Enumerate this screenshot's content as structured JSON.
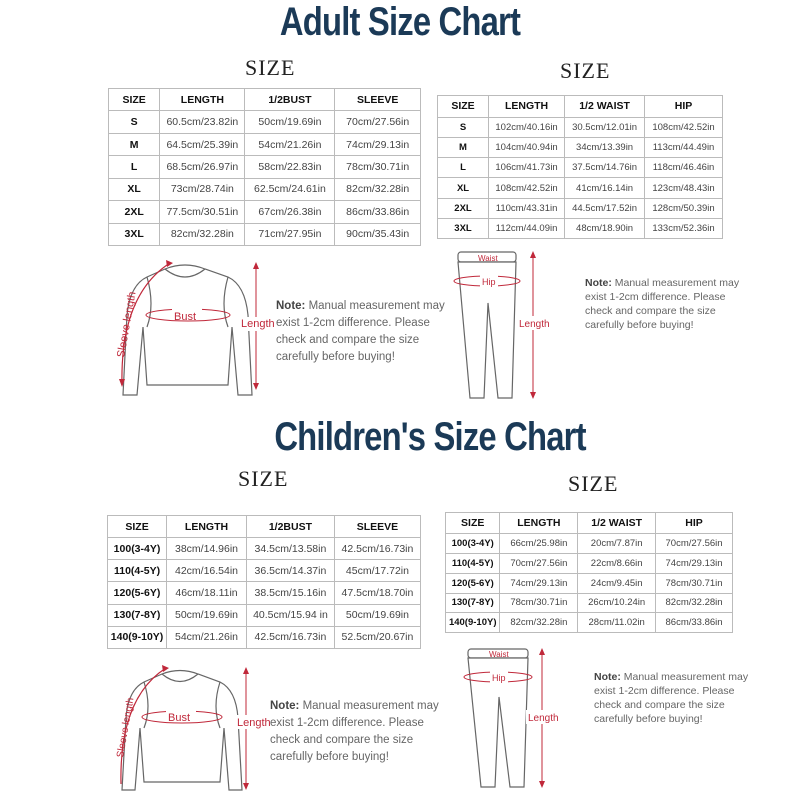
{
  "adult": {
    "title": "Adult Size Chart",
    "top_table": {
      "heading": "SIZE",
      "headers": [
        "SIZE",
        "LENGTH",
        "1/2BUST",
        "SLEEVE"
      ],
      "rows": [
        [
          "S",
          "60.5cm/23.82in",
          "50cm/19.69in",
          "70cm/27.56in"
        ],
        [
          "M",
          "64.5cm/25.39in",
          "54cm/21.26in",
          "74cm/29.13in"
        ],
        [
          "L",
          "68.5cm/26.97in",
          "58cm/22.83in",
          "78cm/30.71in"
        ],
        [
          "XL",
          "73cm/28.74in",
          "62.5cm/24.61in",
          "82cm/32.28in"
        ],
        [
          "2XL",
          "77.5cm/30.51in",
          "67cm/26.38in",
          "86cm/33.86in"
        ],
        [
          "3XL",
          "82cm/32.28in",
          "71cm/27.95in",
          "90cm/35.43in"
        ]
      ]
    },
    "bottom_table": {
      "heading": "SIZE",
      "headers": [
        "SIZE",
        "LENGTH",
        "1/2 WAIST",
        "HIP"
      ],
      "rows": [
        [
          "S",
          "102cm/40.16in",
          "30.5cm/12.01in",
          "108cm/42.52in"
        ],
        [
          "M",
          "104cm/40.94in",
          "34cm/13.39in",
          "113cm/44.49in"
        ],
        [
          "L",
          "106cm/41.73in",
          "37.5cm/14.76in",
          "118cm/46.46in"
        ],
        [
          "XL",
          "108cm/42.52in",
          "41cm/16.14in",
          "123cm/48.43in"
        ],
        [
          "2XL",
          "110cm/43.31in",
          "44.5cm/17.52in",
          "128cm/50.39in"
        ],
        [
          "3XL",
          "112cm/44.09in",
          "48cm/18.90in",
          "133cm/52.36in"
        ]
      ]
    }
  },
  "children": {
    "title": "Children's Size Chart",
    "top_table": {
      "heading": "SIZE",
      "headers": [
        "SIZE",
        "LENGTH",
        "1/2BUST",
        "SLEEVE"
      ],
      "rows": [
        [
          "100(3-4Y)",
          "38cm/14.96in",
          "34.5cm/13.58in",
          "42.5cm/16.73in"
        ],
        [
          "110(4-5Y)",
          "42cm/16.54in",
          "36.5cm/14.37in",
          "45cm/17.72in"
        ],
        [
          "120(5-6Y)",
          "46cm/18.11in",
          "38.5cm/15.16in",
          "47.5cm/18.70in"
        ],
        [
          "130(7-8Y)",
          "50cm/19.69in",
          "40.5cm/15.94 in",
          "50cm/19.69in"
        ],
        [
          "140(9-10Y)",
          "54cm/21.26in",
          "42.5cm/16.73in",
          "52.5cm/20.67in"
        ]
      ]
    },
    "bottom_table": {
      "heading": "SIZE",
      "headers": [
        "SIZE",
        "LENGTH",
        "1/2 WAIST",
        "HIP"
      ],
      "rows": [
        [
          "100(3-4Y)",
          "66cm/25.98in",
          "20cm/7.87in",
          "70cm/27.56in"
        ],
        [
          "110(4-5Y)",
          "70cm/27.56in",
          "22cm/8.66in",
          "74cm/29.13in"
        ],
        [
          "120(5-6Y)",
          "74cm/29.13in",
          "24cm/9.45in",
          "78cm/30.71in"
        ],
        [
          "130(7-8Y)",
          "78cm/30.71in",
          "26cm/10.24in",
          "82cm/32.28in"
        ],
        [
          "140(9-10Y)",
          "82cm/32.28in",
          "28cm/11.02in",
          "86cm/33.86in"
        ]
      ]
    }
  },
  "labels": {
    "sleeve_length": "Sleeve length",
    "bust": "Bust",
    "length": "Length",
    "waist": "Waist",
    "hip": "Hip"
  },
  "note": {
    "label": "Note:",
    "text_1": " Manual measurement may",
    "text_2": "exist 1-2cm difference. Please",
    "text_3": "check and compare the size",
    "text_4": "carefully before buying!"
  },
  "colors": {
    "title": "#1b3a57",
    "measure": "#c0283a"
  }
}
